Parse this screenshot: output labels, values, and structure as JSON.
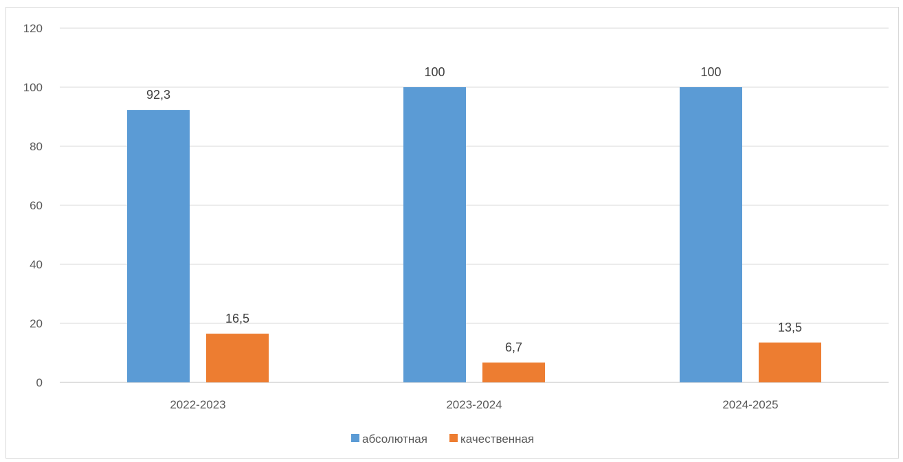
{
  "chart_data": {
    "type": "bar",
    "categories": [
      "2022-2023",
      "2023-2024",
      "2024-2025"
    ],
    "series": [
      {
        "name": "абсолютная",
        "values": [
          92.3,
          100,
          100
        ],
        "labels": [
          "92,3",
          "100",
          "100"
        ],
        "color": "#5B9BD5"
      },
      {
        "name": "качественная",
        "values": [
          16.5,
          6.7,
          13.5
        ],
        "labels": [
          "16,5",
          "6,7",
          "13,5"
        ],
        "color": "#ED7D31"
      }
    ],
    "ylim": [
      0,
      120
    ],
    "yticks": [
      0,
      20,
      40,
      60,
      80,
      100,
      120
    ],
    "grid": true,
    "legend_position": "bottom",
    "title": "",
    "xlabel": "",
    "ylabel": ""
  }
}
